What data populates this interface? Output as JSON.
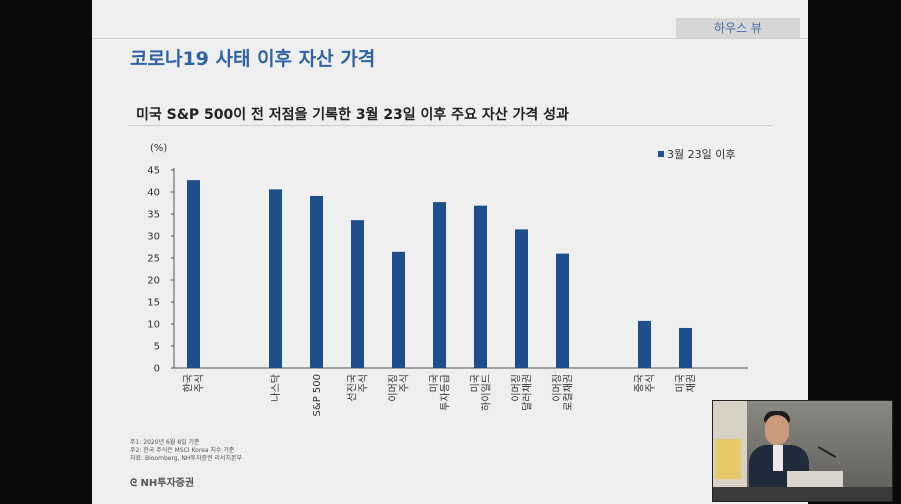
{
  "slide": {
    "tag": "하우스 뷰",
    "title": "코로나19 사태 이후 자산 가격",
    "subtitle": "미국 S&P 500이 전 저점을 기록한 3월 23일 이후 주요 자산 가격 성과",
    "notes": [
      "주1: 2020년 6월 8일 기준",
      "주2: 한국 주식은 MSCI Korea 지수 기준",
      "자료: Bloomberg, NH투자증권 리서치본부"
    ],
    "logo": "NH투자증권"
  },
  "chart_data": {
    "type": "bar",
    "unit_label": "(%)",
    "ylim": [
      0,
      45
    ],
    "yticks": [
      0,
      5,
      10,
      15,
      20,
      25,
      30,
      35,
      40,
      45
    ],
    "grid": false,
    "legend_position": "top-right",
    "series": [
      {
        "name": "3월 23일 이후",
        "color": "#1f4e8c",
        "values": [
          42.7,
          40.6,
          39.1,
          33.6,
          26.4,
          37.7,
          36.9,
          31.5,
          26.0,
          10.7,
          9.1
        ]
      }
    ],
    "categories": [
      [
        "한국",
        "주식"
      ],
      [
        "나스닥"
      ],
      [
        "S&P 500"
      ],
      [
        "선진국",
        "주식"
      ],
      [
        "이머징",
        "주식"
      ],
      [
        "미국",
        "투자등급"
      ],
      [
        "미국",
        "하이일드"
      ],
      [
        "이머징",
        "달러채권"
      ],
      [
        "이머징",
        "로컬채권"
      ],
      [
        "중국",
        "주식"
      ],
      [
        "미국",
        "채권"
      ]
    ]
  },
  "webcam": {
    "icon": "presenter-video"
  }
}
